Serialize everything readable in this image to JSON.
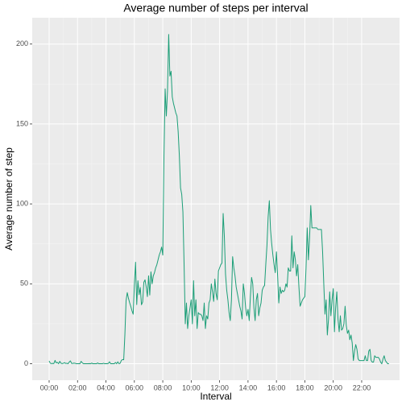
{
  "chart_data": {
    "type": "line",
    "title": "Average number of steps per interval",
    "x_label": "Interval",
    "y_label": "Average number of step",
    "series": [
      {
        "name": "steps",
        "color": "#1b9e77",
        "values": [
          1.7,
          0.3,
          0.1,
          0.2,
          0.1,
          2.1,
          0.5,
          0.9,
          0,
          1.5,
          0.3,
          0.1,
          0.3,
          0.7,
          0.2,
          0.3,
          0,
          1.1,
          1.8,
          0.2,
          0.2,
          0.4,
          0.3,
          0,
          0,
          0,
          0,
          1.5,
          0.6,
          0,
          0,
          0,
          0,
          0,
          0.1,
          0,
          0.4,
          0,
          0,
          0,
          0,
          0.5,
          0,
          0,
          0,
          0,
          0.3,
          0,
          0.1,
          0,
          0.2,
          1.2,
          0,
          0,
          0,
          0,
          0.8,
          0,
          1.2,
          0,
          0.3,
          2.1,
          2.6,
          2.5,
          18.3,
          39.5,
          44.5,
          41.0,
          38.2,
          35.8,
          33.1,
          31.0,
          49.3,
          63.5,
          37.0,
          51.9,
          43.2,
          47.7,
          36.9,
          38.6,
          51.0,
          52.5,
          48.0,
          42.0,
          55,
          43,
          57.5,
          50,
          55,
          57,
          60,
          62,
          65,
          68,
          70,
          73,
          68,
          130,
          172,
          155,
          171,
          206,
          180,
          183,
          167,
          163,
          160,
          157,
          155,
          145,
          130,
          110,
          106,
          95,
          62,
          25,
          38,
          22,
          30,
          35,
          40,
          25,
          52,
          30,
          40,
          22,
          32,
          31,
          31,
          30,
          27,
          38,
          22,
          30,
          28,
          38,
          40,
          50,
          45,
          39,
          53,
          44,
          40,
          58,
          60,
          62,
          63,
          94,
          80,
          56,
          46,
          40,
          32,
          27,
          40,
          67,
          60,
          55,
          48,
          44,
          40,
          36,
          33,
          28,
          50,
          44,
          35,
          30,
          34,
          27,
          42,
          54,
          50,
          35,
          27,
          40,
          44,
          30,
          35,
          38,
          46,
          48,
          49,
          62,
          74,
          92,
          102,
          84,
          75,
          68,
          62,
          57,
          70,
          55,
          38,
          48,
          44,
          46,
          45,
          46,
          50,
          48,
          60,
          58,
          58,
          80,
          60,
          70,
          65,
          55,
          62,
          48,
          36,
          38,
          40,
          41,
          42,
          60,
          85,
          65,
          79,
          99,
          85,
          85,
          85,
          85,
          85,
          84,
          84,
          84,
          84,
          70,
          50,
          31,
          40,
          18,
          28,
          45,
          30,
          40,
          47,
          20,
          35,
          45,
          28,
          20,
          30,
          21,
          22,
          25,
          36,
          24,
          19,
          21,
          15,
          18,
          13,
          2,
          8,
          12,
          9,
          3,
          2,
          2,
          2,
          2,
          2,
          5,
          2,
          2,
          8,
          9,
          2,
          1,
          1,
          5,
          4,
          4,
          4,
          3,
          1,
          0,
          3,
          5,
          2,
          1,
          0,
          0
        ]
      }
    ],
    "x": [
      0,
      5,
      10,
      15,
      20,
      25,
      30,
      35,
      40,
      45,
      50,
      55,
      60,
      65,
      70,
      75,
      80,
      85,
      90,
      95,
      100,
      105,
      110,
      115,
      120,
      125,
      130,
      135,
      140,
      145,
      150,
      155,
      160,
      165,
      170,
      175,
      180,
      185,
      190,
      195,
      200,
      205,
      210,
      215,
      220,
      225,
      230,
      235,
      240,
      245,
      250,
      255,
      260,
      265,
      270,
      275,
      280,
      285,
      290,
      295,
      300,
      305,
      310,
      315,
      320,
      325,
      330,
      335,
      340,
      345,
      350,
      355,
      360,
      365,
      370,
      375,
      380,
      385,
      390,
      395,
      400,
      405,
      410,
      415,
      420,
      425,
      430,
      435,
      440,
      445,
      450,
      455,
      460,
      465,
      470,
      475,
      480,
      485,
      490,
      495,
      500,
      505,
      510,
      515,
      520,
      525,
      530,
      535,
      540,
      545,
      550,
      555,
      560,
      565,
      570,
      575,
      580,
      585,
      590,
      595,
      600,
      605,
      610,
      615,
      620,
      625,
      630,
      635,
      640,
      645,
      650,
      655,
      660,
      665,
      670,
      675,
      680,
      685,
      690,
      695,
      700,
      705,
      710,
      715,
      720,
      725,
      730,
      735,
      740,
      745,
      750,
      755,
      760,
      765,
      770,
      775,
      780,
      785,
      790,
      795,
      800,
      805,
      810,
      815,
      820,
      825,
      830,
      835,
      840,
      845,
      850,
      855,
      860,
      865,
      870,
      875,
      880,
      885,
      890,
      895,
      900,
      905,
      910,
      915,
      920,
      925,
      930,
      935,
      940,
      945,
      950,
      955,
      960,
      965,
      970,
      975,
      980,
      985,
      990,
      995,
      1000,
      1005,
      1010,
      1015,
      1020,
      1025,
      1030,
      1035,
      1040,
      1045,
      1050,
      1055,
      1060,
      1065,
      1070,
      1075,
      1080,
      1085,
      1090,
      1095,
      1100,
      1105,
      1110,
      1115,
      1120,
      1125,
      1130,
      1135,
      1140,
      1145,
      1150,
      1155,
      1160,
      1165,
      1170,
      1175,
      1180,
      1185,
      1190,
      1195,
      1200,
      1205,
      1210,
      1215,
      1220,
      1225,
      1230,
      1235,
      1240,
      1245,
      1250,
      1255,
      1260,
      1265,
      1270,
      1275,
      1280,
      1285,
      1290,
      1295,
      1300,
      1305,
      1310,
      1315,
      1320,
      1325,
      1330,
      1335,
      1340,
      1345,
      1350,
      1355,
      1360,
      1365,
      1370,
      1375,
      1380,
      1385,
      1390,
      1395,
      1400,
      1405,
      1410,
      1415,
      1420,
      1425,
      1430,
      1435
    ],
    "xlim": [
      -71.4,
      1480
    ],
    "xticks": [
      {
        "value": 0,
        "label": "00:00"
      },
      {
        "value": 120,
        "label": "02:00"
      },
      {
        "value": 240,
        "label": "04:00"
      },
      {
        "value": 360,
        "label": "06:00"
      },
      {
        "value": 480,
        "label": "08:00"
      },
      {
        "value": 600,
        "label": "10:00"
      },
      {
        "value": 720,
        "label": "12:00"
      },
      {
        "value": 840,
        "label": "14:00"
      },
      {
        "value": 960,
        "label": "16:00"
      },
      {
        "value": 1080,
        "label": "18:00"
      },
      {
        "value": 1200,
        "label": "20:00"
      },
      {
        "value": 1320,
        "label": "22:00"
      }
    ],
    "ylim": [
      -10.31,
      216.48
    ],
    "yticks": [
      0,
      50,
      100,
      150,
      200
    ],
    "grid": true
  }
}
